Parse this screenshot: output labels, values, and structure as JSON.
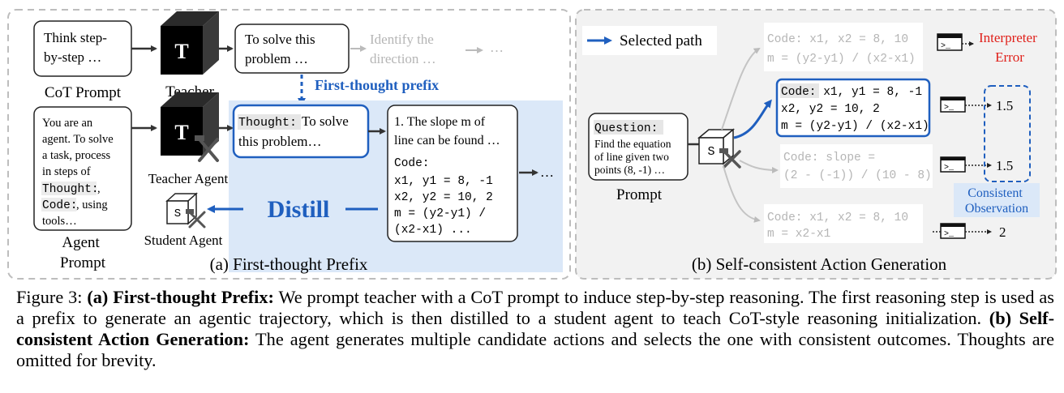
{
  "panel_a": {
    "cot_prompt_box": [
      "Think step-",
      "by-step …"
    ],
    "cot_prompt_label": "CoT Prompt",
    "teacher_label": "Teacher",
    "teacher_cube_letter": "T",
    "thought1_box": [
      "To solve this",
      "problem …"
    ],
    "faded_step": [
      "Identify the",
      "direction …"
    ],
    "faded_ellipsis": "…",
    "prefix_label": "First-thought prefix",
    "agent_prompt_box": {
      "line1": "You are an",
      "line2": "agent. To solve",
      "line3": "a task, process",
      "line4": "in steps of",
      "line5_code": "Thought:",
      "line5_suffix": ",",
      "line6_code": "Code:",
      "line6_suffix": ", using",
      "line7": "tools…"
    },
    "agent_prompt_label": [
      "Agent",
      "Prompt"
    ],
    "teacher_agent_label": "Teacher Agent",
    "teacher_agent_letter": "T",
    "thought_box": {
      "code": "Thought:",
      "text1": " To solve",
      "text2": "this problem…"
    },
    "slope_box": {
      "text1": "1. The slope m of",
      "text2": "line can be found …",
      "code_label": "Code:",
      "code_lines": [
        "x1, y1 = 8, -1",
        "x2, y2 = 10, 2",
        "m = (y2-y1) /",
        "(x2-x1) ..."
      ]
    },
    "trailing_ellipsis": "…",
    "distill_label": "Distill",
    "student_letter": "S",
    "student_label": "Student Agent",
    "panel_title": "(a) First-thought Prefix"
  },
  "panel_b": {
    "legend_label": "Selected path",
    "question_code": "Question:",
    "question_text": [
      "Find the equation",
      "of line given two",
      "points (8, -1) …"
    ],
    "prompt_label": "Prompt",
    "student_letter": "S",
    "candidates": [
      {
        "lines": [
          "Code: x1, x2 = 8, 10",
          "m = (y2-y1) / (x2-x1)"
        ],
        "observation": ""
      },
      {
        "lines": [
          "Code: x1, y1 = 8, -1",
          "x2, y2 = 10, 2",
          "m = (y2-y1) / (x2-x1)"
        ],
        "observation": "1.5"
      },
      {
        "lines": [
          "Code: slope =",
          "(2 - (-1)) / (10 - 8)"
        ],
        "observation": "1.5"
      },
      {
        "lines": [
          "Code: x1, x2 = 8, 10",
          "m = x2-x1"
        ],
        "observation": "2"
      }
    ],
    "interpreter_error": [
      "Interpreter",
      "Error"
    ],
    "consistent_label": [
      "Consistent",
      "Observation"
    ],
    "terminal_glyph": ">_",
    "panel_title": "(b) Self-consistent Action Generation"
  },
  "caption": {
    "figure_label": "Figure 3: ",
    "part_a_title": "(a) First-thought Prefix:",
    "part_a_text": " We prompt teacher with a CoT prompt to induce step-by-step reasoning. The first reasoning step is used as a prefix to generate an agentic trajectory, which is then distilled to a student agent to teach CoT-style reasoning initialization. ",
    "part_b_title": "(b) Self-consistent Action Generation:",
    "part_b_text": " The agent generates multiple candidate actions and selects the one with consistent outcomes. Thoughts are omitted for brevity."
  },
  "colors": {
    "accent_blue": "#1f5fbf",
    "highlight_blue": "#dbe8f8",
    "panel_gray": "#f2f2f2",
    "faded_gray": "#b5b5b5",
    "error_red": "#e0201a"
  }
}
